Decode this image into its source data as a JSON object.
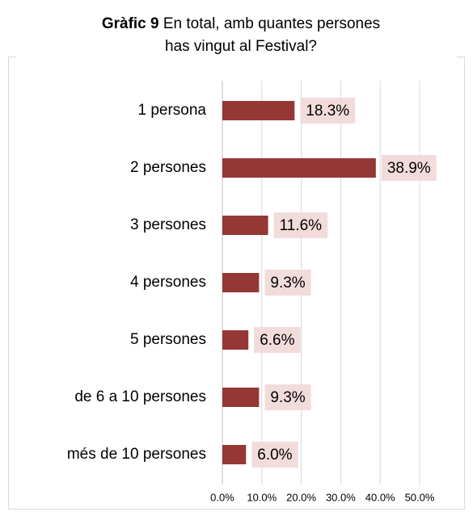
{
  "chart_data": {
    "type": "bar",
    "orientation": "horizontal",
    "title": {
      "label": "Gràfic 9",
      "text": "En total, amb quantes persones has vingut al Festival?"
    },
    "categories": [
      "1 persona",
      "2 persones",
      "3 persones",
      "4 persones",
      "5 persones",
      "de 6 a 10 persones",
      "més de 10 persones"
    ],
    "values": [
      18.3,
      38.9,
      11.6,
      9.3,
      6.6,
      9.3,
      6.0
    ],
    "value_labels": [
      "18.3%",
      "38.9%",
      "11.6%",
      "9.3%",
      "6.6%",
      "9.3%",
      "6.0%"
    ],
    "color": "#953735",
    "label_background": "#f2dcdb",
    "xlim": [
      0,
      50
    ],
    "xticks": [
      {
        "value": 0,
        "label": "0.0%"
      },
      {
        "value": 10,
        "label": "10.0%"
      },
      {
        "value": 20,
        "label": "20.0%"
      },
      {
        "value": 30,
        "label": "30.0%"
      },
      {
        "value": 40,
        "label": "40.0%"
      },
      {
        "value": 50,
        "label": "50.0%"
      }
    ],
    "grid": true
  }
}
